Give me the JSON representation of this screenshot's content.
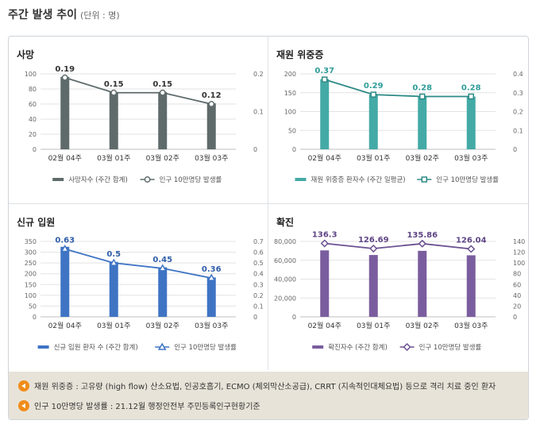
{
  "title": "주간 발생 추이",
  "unit": "(단위 : 명)",
  "chart_data": [
    {
      "type": "bar",
      "title": "사망",
      "categories": [
        "02월 04주",
        "03월 01주",
        "03월 02주",
        "03월 03주"
      ],
      "series": [
        {
          "name": "사망자수 (주간 합계)",
          "type": "bar",
          "axis": "left",
          "values": [
            96,
            76,
            76,
            61
          ]
        },
        {
          "name": "인구 10만명당 발생률",
          "type": "line",
          "axis": "right",
          "marker": "circle",
          "values": [
            0.19,
            0.15,
            0.15,
            0.12
          ]
        }
      ],
      "data_labels": [
        "0.19",
        "0.15",
        "0.15",
        "0.12"
      ],
      "ylim": [
        0,
        100
      ],
      "yticks": [
        "0",
        "20",
        "40",
        "60",
        "80",
        "100"
      ],
      "y2lim": [
        0,
        0.2
      ],
      "y2ticks": [
        "0",
        "0.1",
        "0.2"
      ],
      "colors": {
        "bar": "#5f6b6b",
        "line": "#5f6b6b",
        "label": "#333333"
      },
      "legend": "bottom"
    },
    {
      "type": "bar",
      "title": "재원 위중증",
      "categories": [
        "02월 04주",
        "03월 01주",
        "03월 02주",
        "03월 03주"
      ],
      "series": [
        {
          "name": "재원 위중증 환자수 (주간 일평균)",
          "type": "bar",
          "axis": "left",
          "values": [
            186,
            145,
            140,
            140
          ]
        },
        {
          "name": "인구 10만명당 발생률",
          "type": "line",
          "axis": "right",
          "marker": "square",
          "values": [
            0.37,
            0.29,
            0.28,
            0.28
          ]
        }
      ],
      "data_labels": [
        "0.37",
        "0.29",
        "0.28",
        "0.28"
      ],
      "ylim": [
        0,
        200
      ],
      "yticks": [
        "0",
        "50",
        "100",
        "150",
        "200"
      ],
      "y2lim": [
        0,
        0.4
      ],
      "y2ticks": [
        "0",
        "0.1",
        "0.2",
        "0.3",
        "0.4"
      ],
      "colors": {
        "bar": "#44aaa6",
        "line": "#2e8a86",
        "label": "#2e9c98"
      },
      "legend": "bottom"
    },
    {
      "type": "bar",
      "title": "신규 입원",
      "categories": [
        "02월 04주",
        "03월 01주",
        "03월 02주",
        "03월 03주"
      ],
      "series": [
        {
          "name": "신규 입원 환자 수 (주간 합계)",
          "type": "bar",
          "axis": "left",
          "values": [
            325,
            255,
            230,
            183
          ]
        },
        {
          "name": "인구 10만명당 발생률",
          "type": "line",
          "axis": "right",
          "marker": "triangle",
          "values": [
            0.63,
            0.5,
            0.45,
            0.36
          ]
        }
      ],
      "data_labels": [
        "0.63",
        "0.5",
        "0.45",
        "0.36"
      ],
      "ylim": [
        0,
        350
      ],
      "yticks": [
        "0",
        "50",
        "100",
        "150",
        "200",
        "250",
        "300",
        "350"
      ],
      "y2lim": [
        0,
        0.7
      ],
      "y2ticks": [
        "0",
        "0.1",
        "0.2",
        "0.3",
        "0.4",
        "0.5",
        "0.6",
        "0.7"
      ],
      "colors": {
        "bar": "#3f74c4",
        "line": "#3f74c4",
        "label": "#2f5ea8"
      },
      "legend": "bottom"
    },
    {
      "type": "bar",
      "title": "확진",
      "categories": [
        "02월 04주",
        "03월 01주",
        "03월 02주",
        "03월 03주"
      ],
      "series": [
        {
          "name": "확진자수 (주간 합계)",
          "type": "bar",
          "axis": "left",
          "values": [
            70500,
            65600,
            70000,
            65300
          ]
        },
        {
          "name": "인구 10만명당 발생률",
          "type": "line",
          "axis": "right",
          "marker": "diamond",
          "values": [
            136.3,
            126.69,
            135.86,
            126.04
          ]
        }
      ],
      "data_labels": [
        "136.3",
        "126.69",
        "135.86",
        "126.04"
      ],
      "ylim": [
        0,
        80000
      ],
      "yticks": [
        "0",
        "20,000",
        "40,000",
        "60,000",
        "80,000"
      ],
      "y2lim": [
        0,
        140
      ],
      "y2ticks": [
        "0",
        "20",
        "40",
        "60",
        "80",
        "100",
        "120",
        "140"
      ],
      "colors": {
        "bar": "#7a5d9e",
        "line": "#6b5191",
        "label": "#5e4585"
      },
      "legend": "bottom"
    }
  ],
  "notes": [
    "재원 위중증 : 고유량 (high flow) 산소요법, 인공호흡기, ECMO (체외막산소공급), CRRT (지속적인대체요법) 등으로 격리 치료 중인 환자",
    "인구 10만명당 발생률 : 21.12월 행정안전부 주민등록인구현황기준"
  ],
  "colors": {
    "note_bg": "#e8e3d8",
    "note_icon": "#f08c1a",
    "grid": "#e3e3e3"
  }
}
